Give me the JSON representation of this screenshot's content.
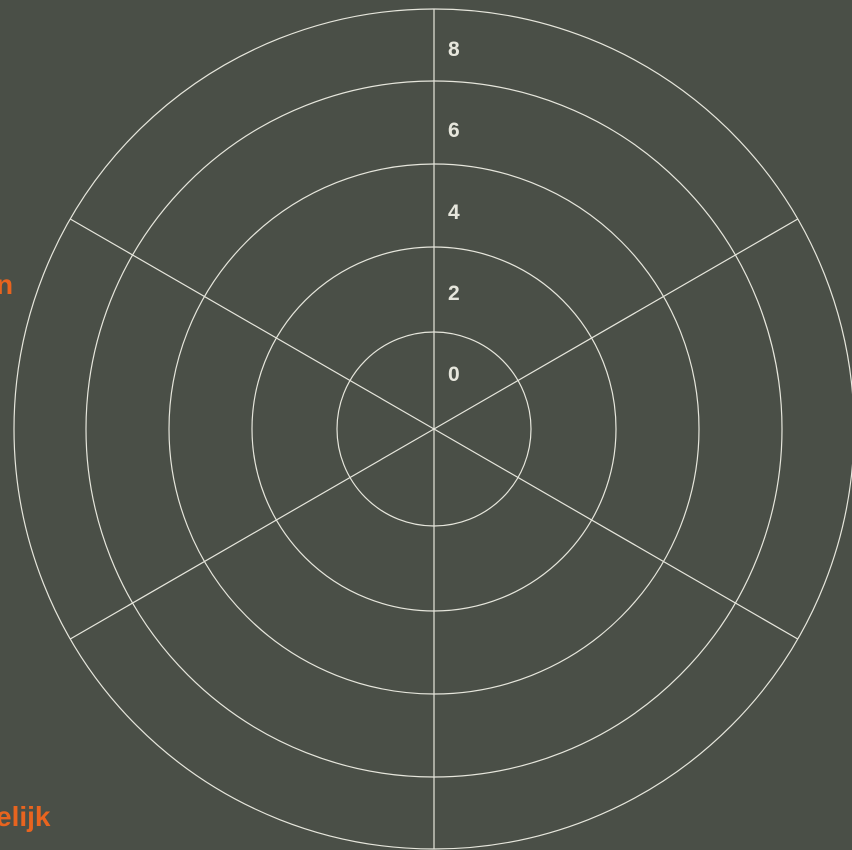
{
  "chart_data": {
    "type": "radar",
    "title": "",
    "axes": [
      "",
      "",
      "",
      "",
      "",
      ""
    ],
    "visible_axis_label_fragments": [
      {
        "axis_index": 4,
        "text": "elijk"
      },
      {
        "axis_index": 5,
        "text": "n"
      }
    ],
    "radial_ticks": [
      "0",
      "2",
      "4",
      "6",
      "8"
    ],
    "rlim": [
      -2,
      8
    ],
    "grid": true,
    "series": [],
    "colors": {
      "background": "#4a4f47",
      "grid": "#e6e6dc",
      "label": "#e8641f",
      "tick": "#e6e6dc"
    }
  }
}
